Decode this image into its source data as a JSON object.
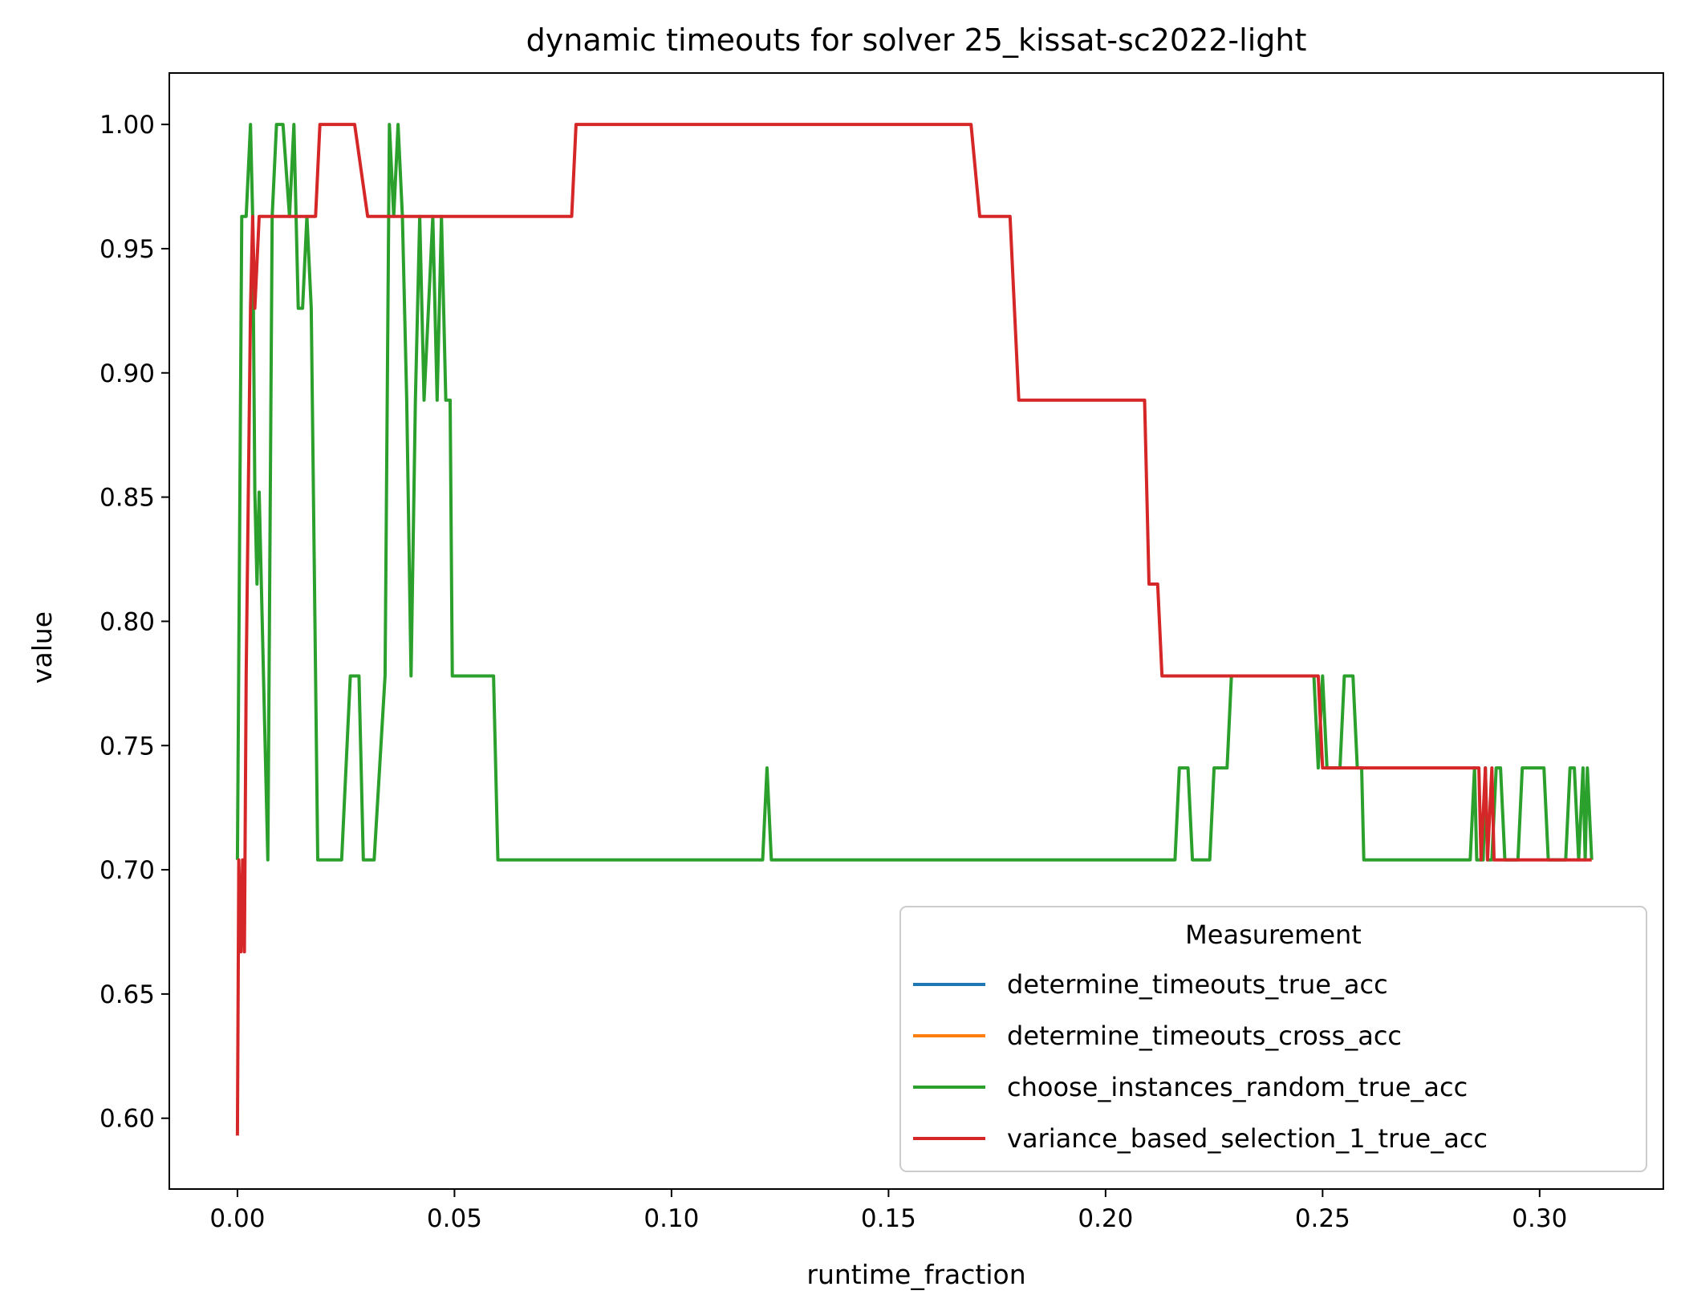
{
  "chart_data": {
    "type": "line",
    "title": "dynamic timeouts for solver 25_kissat-sc2022-light",
    "xlabel": "runtime_fraction",
    "ylabel": "value",
    "xlim": [
      -0.0157,
      0.3285
    ],
    "ylim": [
      0.5715,
      1.0207
    ],
    "xticks": [
      0.0,
      0.05,
      0.1,
      0.15,
      0.2,
      0.25,
      0.3
    ],
    "xtick_labels": [
      "0.00",
      "0.05",
      "0.10",
      "0.15",
      "0.20",
      "0.25",
      "0.30"
    ],
    "yticks": [
      0.6,
      0.65,
      0.7,
      0.75,
      0.8,
      0.85,
      0.9,
      0.95,
      1.0
    ],
    "ytick_labels": [
      "0.60",
      "0.65",
      "0.70",
      "0.75",
      "0.80",
      "0.85",
      "0.90",
      "0.95",
      "1.00"
    ],
    "grid": false,
    "legend": {
      "title": "Measurement",
      "placement": "lower right"
    },
    "series": [
      {
        "name": "determine_timeouts_true_acc",
        "color": "#1f77b4",
        "points": []
      },
      {
        "name": "determine_timeouts_cross_acc",
        "color": "#ff7f0e",
        "points": []
      },
      {
        "name": "choose_instances_random_true_acc",
        "color": "#2ca02c",
        "points": [
          [
            0.0,
            0.704
          ],
          [
            0.001,
            0.963
          ],
          [
            0.002,
            0.963
          ],
          [
            0.003,
            1.0
          ],
          [
            0.0035,
            0.963
          ],
          [
            0.004,
            0.852
          ],
          [
            0.0045,
            0.815
          ],
          [
            0.005,
            0.852
          ],
          [
            0.0055,
            0.815
          ],
          [
            0.007,
            0.704
          ],
          [
            0.008,
            0.963
          ],
          [
            0.009,
            1.0
          ],
          [
            0.0105,
            1.0
          ],
          [
            0.012,
            0.963
          ],
          [
            0.013,
            1.0
          ],
          [
            0.014,
            0.926
          ],
          [
            0.015,
            0.926
          ],
          [
            0.016,
            0.963
          ],
          [
            0.017,
            0.926
          ],
          [
            0.018,
            0.778
          ],
          [
            0.0185,
            0.704
          ],
          [
            0.024,
            0.704
          ],
          [
            0.026,
            0.778
          ],
          [
            0.028,
            0.778
          ],
          [
            0.029,
            0.704
          ],
          [
            0.0315,
            0.704
          ],
          [
            0.034,
            0.778
          ],
          [
            0.035,
            1.0
          ],
          [
            0.036,
            0.963
          ],
          [
            0.037,
            1.0
          ],
          [
            0.038,
            0.963
          ],
          [
            0.039,
            0.889
          ],
          [
            0.04,
            0.778
          ],
          [
            0.041,
            0.889
          ],
          [
            0.042,
            0.963
          ],
          [
            0.043,
            0.889
          ],
          [
            0.044,
            0.926
          ],
          [
            0.045,
            0.963
          ],
          [
            0.046,
            0.889
          ],
          [
            0.047,
            0.963
          ],
          [
            0.048,
            0.889
          ],
          [
            0.049,
            0.889
          ],
          [
            0.0495,
            0.778
          ],
          [
            0.059,
            0.778
          ],
          [
            0.06,
            0.704
          ],
          [
            0.121,
            0.704
          ],
          [
            0.122,
            0.741
          ],
          [
            0.123,
            0.704
          ],
          [
            0.216,
            0.704
          ],
          [
            0.217,
            0.741
          ],
          [
            0.219,
            0.741
          ],
          [
            0.22,
            0.704
          ],
          [
            0.224,
            0.704
          ],
          [
            0.225,
            0.741
          ],
          [
            0.228,
            0.741
          ],
          [
            0.229,
            0.778
          ],
          [
            0.248,
            0.778
          ],
          [
            0.249,
            0.741
          ],
          [
            0.25,
            0.778
          ],
          [
            0.251,
            0.741
          ],
          [
            0.254,
            0.741
          ],
          [
            0.255,
            0.778
          ],
          [
            0.257,
            0.778
          ],
          [
            0.258,
            0.741
          ],
          [
            0.259,
            0.741
          ],
          [
            0.2595,
            0.704
          ],
          [
            0.284,
            0.704
          ],
          [
            0.285,
            0.741
          ],
          [
            0.2855,
            0.704
          ],
          [
            0.287,
            0.704
          ],
          [
            0.2875,
            0.741
          ],
          [
            0.288,
            0.704
          ],
          [
            0.289,
            0.704
          ],
          [
            0.29,
            0.741
          ],
          [
            0.291,
            0.741
          ],
          [
            0.292,
            0.704
          ],
          [
            0.295,
            0.704
          ],
          [
            0.296,
            0.741
          ],
          [
            0.301,
            0.741
          ],
          [
            0.302,
            0.704
          ],
          [
            0.306,
            0.704
          ],
          [
            0.307,
            0.741
          ],
          [
            0.308,
            0.741
          ],
          [
            0.309,
            0.704
          ],
          [
            0.31,
            0.741
          ],
          [
            0.3105,
            0.704
          ],
          [
            0.311,
            0.741
          ],
          [
            0.312,
            0.704
          ]
        ]
      },
      {
        "name": "variance_based_selection_1_true_acc",
        "color": "#d62728",
        "points": [
          [
            0.0,
            0.593
          ],
          [
            0.0003,
            0.704
          ],
          [
            0.0008,
            0.667
          ],
          [
            0.0012,
            0.704
          ],
          [
            0.0016,
            0.667
          ],
          [
            0.002,
            0.778
          ],
          [
            0.0025,
            0.852
          ],
          [
            0.003,
            0.926
          ],
          [
            0.0035,
            0.963
          ],
          [
            0.004,
            0.926
          ],
          [
            0.005,
            0.963
          ],
          [
            0.018,
            0.963
          ],
          [
            0.019,
            1.0
          ],
          [
            0.027,
            1.0
          ],
          [
            0.03,
            0.963
          ],
          [
            0.077,
            0.963
          ],
          [
            0.078,
            1.0
          ],
          [
            0.169,
            1.0
          ],
          [
            0.171,
            0.963
          ],
          [
            0.178,
            0.963
          ],
          [
            0.18,
            0.889
          ],
          [
            0.209,
            0.889
          ],
          [
            0.21,
            0.815
          ],
          [
            0.212,
            0.815
          ],
          [
            0.213,
            0.778
          ],
          [
            0.249,
            0.778
          ],
          [
            0.25,
            0.741
          ],
          [
            0.286,
            0.741
          ],
          [
            0.2865,
            0.704
          ],
          [
            0.2875,
            0.741
          ],
          [
            0.288,
            0.704
          ],
          [
            0.289,
            0.741
          ],
          [
            0.2895,
            0.704
          ],
          [
            0.312,
            0.704
          ]
        ]
      }
    ]
  }
}
